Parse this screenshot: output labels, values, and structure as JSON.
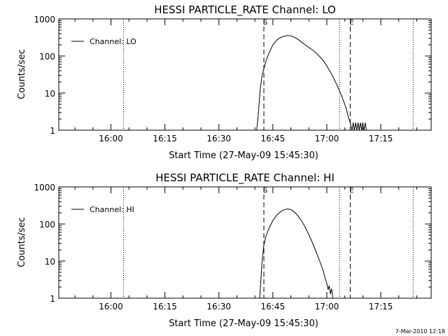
{
  "chart_data": [
    {
      "type": "line",
      "title": "HESSI PARTICLE_RATE Channel: LO",
      "xlabel": "Start Time (27-May-09 15:45:30)",
      "ylabel": "Counts/sec",
      "yscale": "log",
      "ylim": [
        1,
        1000
      ],
      "xlim": [
        "15:45:30",
        "17:29:00"
      ],
      "x_ticks": [
        "16:00",
        "16:15",
        "16:30",
        "16:45",
        "17:00",
        "17:15"
      ],
      "y_ticks": [
        "1",
        "10",
        "100",
        "1000"
      ],
      "legend": {
        "placement": "top-left",
        "entries": [
          "Channel: LO"
        ]
      },
      "markers": [
        {
          "label": "S",
          "time": "16:42:30",
          "style": "dashed"
        },
        {
          "label": "E",
          "time": "17:06:30",
          "style": "dashed"
        }
      ],
      "dotted_lines": [
        "16:03:30",
        "17:03:30",
        "17:24:00"
      ],
      "series": [
        {
          "name": "Channel: LO",
          "points": [
            [
              "16:40:30",
              1
            ],
            [
              "16:40:50",
              2
            ],
            [
              "16:41:10",
              5
            ],
            [
              "16:41:30",
              13
            ],
            [
              "16:42:00",
              30
            ],
            [
              "16:43:00",
              70
            ],
            [
              "16:44:00",
              125
            ],
            [
              "16:45:00",
              200
            ],
            [
              "16:46:00",
              265
            ],
            [
              "16:47:00",
              310
            ],
            [
              "16:48:00",
              340
            ],
            [
              "16:49:00",
              355
            ],
            [
              "16:50:00",
              350
            ],
            [
              "16:51:00",
              320
            ],
            [
              "16:52:00",
              280
            ],
            [
              "16:53:00",
              235
            ],
            [
              "16:54:00",
              200
            ],
            [
              "16:55:00",
              170
            ],
            [
              "16:56:00",
              145
            ],
            [
              "16:57:00",
              120
            ],
            [
              "16:58:00",
              97
            ],
            [
              "16:59:00",
              75
            ],
            [
              "17:00:00",
              54
            ],
            [
              "17:01:00",
              37
            ],
            [
              "17:02:00",
              24
            ],
            [
              "17:03:00",
              15
            ],
            [
              "17:04:00",
              9
            ],
            [
              "17:05:00",
              5
            ],
            [
              "17:05:30",
              3.5
            ],
            [
              "17:06:00",
              2.2
            ],
            [
              "17:06:30",
              1.6
            ],
            [
              "17:07:00",
              1
            ],
            [
              "17:07:20",
              1.6
            ],
            [
              "17:07:40",
              1
            ],
            [
              "17:08:00",
              1.6
            ],
            [
              "17:08:20",
              1
            ],
            [
              "17:08:40",
              1.6
            ],
            [
              "17:09:00",
              1
            ],
            [
              "17:09:20",
              1.6
            ],
            [
              "17:09:40",
              1
            ],
            [
              "17:10:00",
              1.6
            ],
            [
              "17:10:20",
              1
            ],
            [
              "17:10:40",
              1.6
            ],
            [
              "17:11:00",
              1
            ]
          ]
        }
      ]
    },
    {
      "type": "line",
      "title": "HESSI PARTICLE_RATE Channel: HI",
      "xlabel": "Start Time (27-May-09 15:45:30)",
      "ylabel": "Counts/sec",
      "yscale": "log",
      "ylim": [
        1,
        1000
      ],
      "xlim": [
        "15:45:30",
        "17:29:00"
      ],
      "x_ticks": [
        "16:00",
        "16:15",
        "16:30",
        "16:45",
        "17:00",
        "17:15"
      ],
      "y_ticks": [
        "1",
        "10",
        "100",
        "1000"
      ],
      "legend": {
        "placement": "top-left",
        "entries": [
          "Channel: HI"
        ]
      },
      "markers": [
        {
          "label": "S",
          "time": "16:42:30",
          "style": "dashed"
        },
        {
          "label": "E",
          "time": "17:06:30",
          "style": "dashed"
        }
      ],
      "dotted_lines": [
        "16:03:30",
        "17:03:30",
        "17:24:00"
      ],
      "series": [
        {
          "name": "Channel: HI",
          "points": [
            [
              "16:41:20",
              1
            ],
            [
              "16:41:40",
              3
            ],
            [
              "16:42:00",
              10
            ],
            [
              "16:42:30",
              27
            ],
            [
              "16:43:00",
              45
            ],
            [
              "16:44:00",
              80
            ],
            [
              "16:45:00",
              125
            ],
            [
              "16:46:00",
              170
            ],
            [
              "16:47:00",
              210
            ],
            [
              "16:48:00",
              240
            ],
            [
              "16:49:00",
              255
            ],
            [
              "16:50:00",
              245
            ],
            [
              "16:51:00",
              210
            ],
            [
              "16:52:00",
              165
            ],
            [
              "16:53:00",
              120
            ],
            [
              "16:54:00",
              82
            ],
            [
              "16:55:00",
              52
            ],
            [
              "16:56:00",
              31
            ],
            [
              "16:57:00",
              18
            ],
            [
              "16:58:00",
              10
            ],
            [
              "16:59:00",
              5.5
            ],
            [
              "16:59:30",
              3.5
            ],
            [
              "17:00:00",
              2.5
            ],
            [
              "17:00:20",
              1.7
            ],
            [
              "17:00:40",
              2.2
            ],
            [
              "17:01:00",
              1.3
            ],
            [
              "17:01:20",
              1.8
            ],
            [
              "17:01:40",
              1
            ]
          ]
        }
      ]
    }
  ],
  "footer_timestamp": "7-Mar-2010 12:18"
}
